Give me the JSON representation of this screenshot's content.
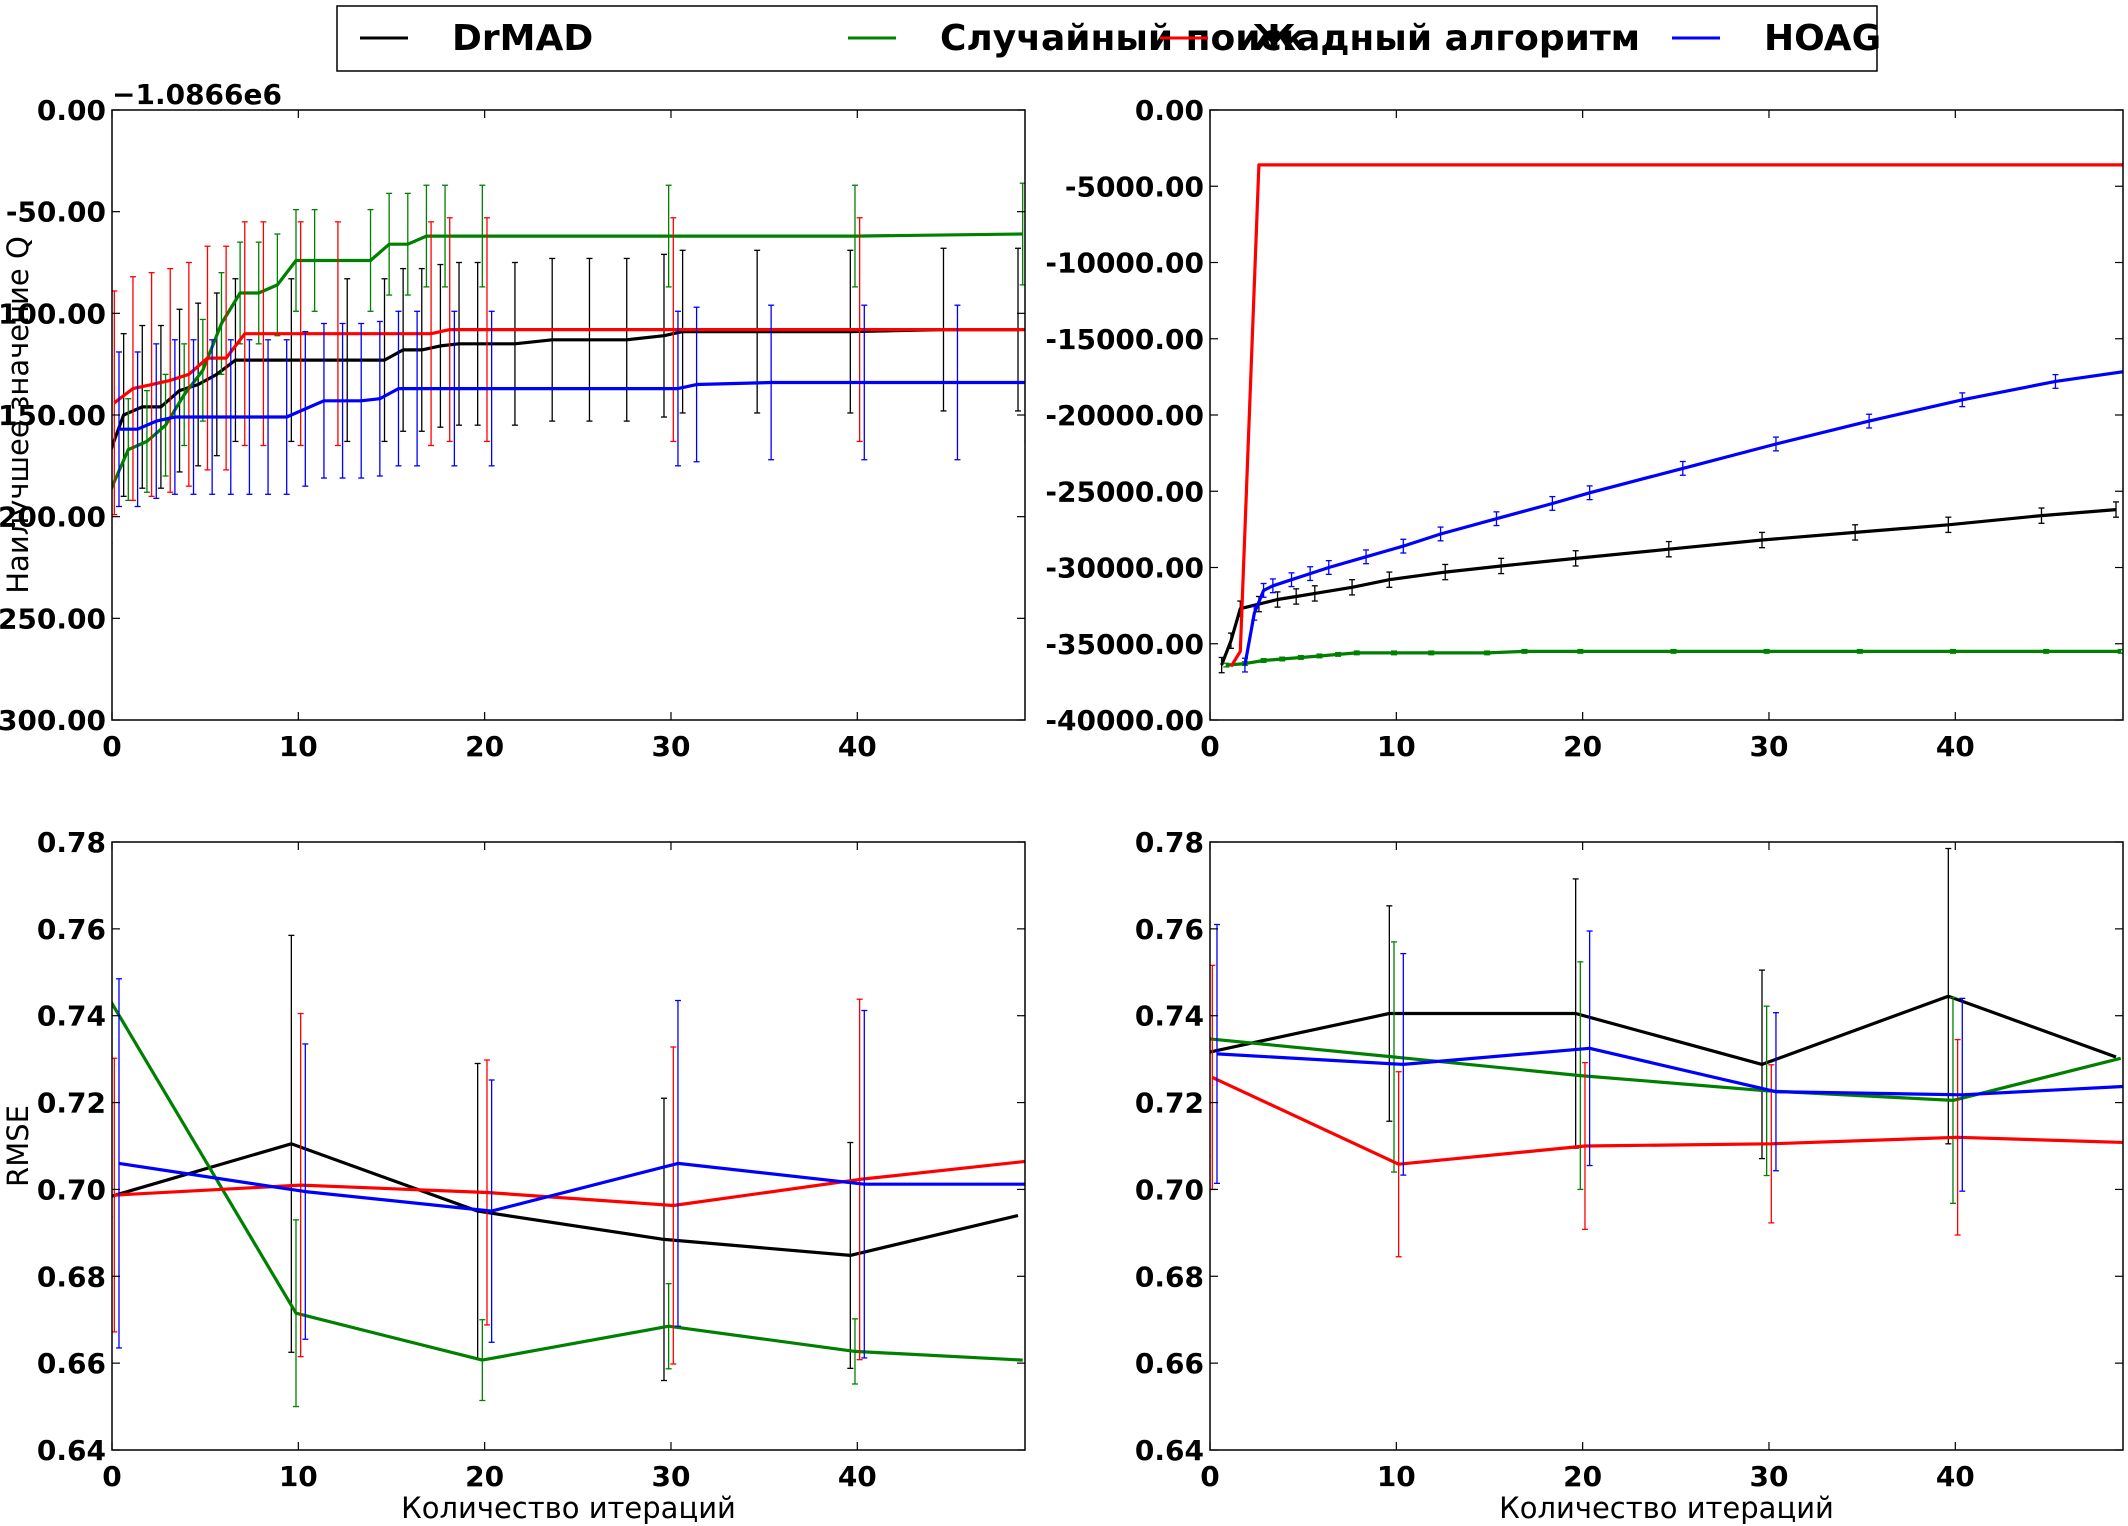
{
  "legend": {
    "entries": [
      {
        "name": "DrMAD",
        "color": "#000000"
      },
      {
        "name": "Случайный поиск",
        "color": "#008000"
      },
      {
        "name": "Жадный алгоритм",
        "color": "#ff0000"
      },
      {
        "name": "HOAG",
        "color": "#0000ff"
      }
    ]
  },
  "chart_data": [
    {
      "id": "top-left",
      "type": "line",
      "ylabel": "Наилучшее значение Q",
      "xlabel": "",
      "offset_text": "−1.0866e6",
      "xlim": [
        0,
        49
      ],
      "ylim": [
        -300,
        0
      ],
      "xticks": [
        0,
        10,
        20,
        30,
        40
      ],
      "yticks": [
        0,
        -50,
        -100,
        -150,
        -200,
        -250,
        -300
      ],
      "series": [
        {
          "name": "DrMAD",
          "color": "#000000",
          "x": [
            0,
            1,
            2,
            3,
            4,
            5,
            6,
            7,
            10,
            13,
            15,
            16,
            17,
            18,
            19,
            20,
            22,
            24,
            26,
            28,
            30,
            31,
            35,
            40,
            45,
            49
          ],
          "y": [
            -175,
            -150,
            -146,
            -146,
            -138,
            -135,
            -130,
            -123,
            -123,
            -123,
            -123,
            -118,
            -118,
            -116,
            -115,
            -115,
            -115,
            -113,
            -113,
            -113,
            -111,
            -109,
            -109,
            -109,
            -108,
            -108
          ],
          "err": 40
        },
        {
          "name": "Случайный поиск",
          "color": "#008000",
          "x": [
            0,
            1,
            2,
            3,
            4,
            5,
            6,
            7,
            8,
            9,
            10,
            11,
            14,
            15,
            16,
            17,
            18,
            20,
            30,
            40,
            49
          ],
          "y": [
            -188,
            -167,
            -163,
            -155,
            -140,
            -128,
            -105,
            -90,
            -90,
            -86,
            -74,
            -74,
            -74,
            -66,
            -66,
            -62,
            -62,
            -62,
            -62,
            -62,
            -61
          ],
          "err": 25
        },
        {
          "name": "Жадный алгоритм",
          "color": "#ff0000",
          "x": [
            0,
            1,
            2,
            3,
            4,
            5,
            6,
            7,
            8,
            10,
            12,
            17,
            18,
            20,
            30,
            40,
            49
          ],
          "y": [
            -144,
            -137,
            -135,
            -133,
            -130,
            -122,
            -122,
            -110,
            -110,
            -110,
            -110,
            -110,
            -108,
            -108,
            -108,
            -108,
            -108
          ],
          "err": 55
        },
        {
          "name": "HOAG",
          "color": "#0000ff",
          "x": [
            0,
            1,
            2,
            3,
            4,
            5,
            6,
            7,
            8,
            9,
            10,
            11,
            12,
            13,
            14,
            15,
            16,
            18,
            20,
            30,
            31,
            35,
            40,
            45,
            49
          ],
          "y": [
            -157,
            -157,
            -153,
            -151,
            -151,
            -151,
            -151,
            -151,
            -151,
            -151,
            -147,
            -143,
            -143,
            -143,
            -142,
            -137,
            -137,
            -137,
            -137,
            -137,
            -135,
            -134,
            -134,
            -134,
            -134
          ],
          "err": 38
        }
      ]
    },
    {
      "id": "top-right",
      "type": "line",
      "ylabel": "",
      "xlabel": "",
      "xlim": [
        0,
        49
      ],
      "ylim": [
        -40000,
        0
      ],
      "xticks": [
        0,
        10,
        20,
        30,
        40
      ],
      "yticks": [
        0,
        -5000,
        -10000,
        -15000,
        -20000,
        -25000,
        -30000,
        -35000,
        -40000
      ],
      "series": [
        {
          "name": "DrMAD",
          "color": "#000000",
          "x": [
            1,
            1.5,
            2,
            3,
            4,
            5,
            6,
            8,
            10,
            13,
            16,
            20,
            25,
            30,
            35,
            40,
            45,
            49
          ],
          "y": [
            -36400,
            -34800,
            -32700,
            -32400,
            -32100,
            -31900,
            -31700,
            -31300,
            -30800,
            -30300,
            -29900,
            -29400,
            -28800,
            -28200,
            -27700,
            -27200,
            -26600,
            -26200
          ],
          "err": 500
        },
        {
          "name": "Случайный поиск",
          "color": "#008000",
          "x": [
            1,
            2,
            3,
            4,
            5,
            6,
            7,
            8,
            10,
            12,
            15,
            17,
            20,
            25,
            30,
            35,
            40,
            45,
            49
          ],
          "y": [
            -36400,
            -36300,
            -36100,
            -36000,
            -35900,
            -35800,
            -35700,
            -35600,
            -35600,
            -35600,
            -35600,
            -35500,
            -35500,
            -35500,
            -35500,
            -35500,
            -35500,
            -35500,
            -35500
          ],
          "err": 120
        },
        {
          "name": "Жадный алгоритм",
          "color": "#ff0000",
          "x": [
            1,
            1.5,
            2.5,
            5,
            10,
            20,
            30,
            40,
            49
          ],
          "y": [
            -36500,
            -35500,
            -3600,
            -3600,
            -3600,
            -3600,
            -3600,
            -3600,
            -3600
          ],
          "err": 0
        },
        {
          "name": "HOAG",
          "color": "#0000ff",
          "x": [
            1.5,
            2,
            2.5,
            3,
            4,
            5,
            6,
            8,
            10,
            12,
            15,
            18,
            20,
            25,
            30,
            35,
            40,
            45,
            49
          ],
          "y": [
            -36400,
            -33000,
            -31500,
            -31200,
            -30800,
            -30400,
            -30000,
            -29300,
            -28600,
            -27800,
            -26800,
            -25800,
            -25100,
            -23500,
            -21900,
            -20400,
            -19000,
            -17800,
            -17100
          ],
          "err": 450
        }
      ]
    },
    {
      "id": "bottom-left",
      "type": "line",
      "ylabel": "RMSE",
      "xlabel": "Количество итераций",
      "xlim": [
        0,
        49
      ],
      "ylim": [
        0.64,
        0.78
      ],
      "xticks": [
        0,
        10,
        20,
        30,
        40
      ],
      "yticks": [
        0.78,
        0.76,
        0.74,
        0.72,
        0.7,
        0.68,
        0.66,
        0.64
      ],
      "series": [
        {
          "name": "DrMAD",
          "color": "#000000",
          "x": [
            0,
            10,
            20,
            30,
            40,
            49
          ],
          "y": [
            0.698,
            0.7105,
            0.695,
            0.6885,
            0.6848,
            0.694
          ],
          "err": [
            0.033,
            0.048,
            0.034,
            0.0325,
            0.026,
            0
          ]
        },
        {
          "name": "Случайный поиск",
          "color": "#008000",
          "x": [
            0,
            10,
            20,
            30,
            40,
            49
          ],
          "y": [
            0.7437,
            0.6715,
            0.6607,
            0.6685,
            0.6627,
            0.6607
          ],
          "err": [
            0.05,
            0.0215,
            0.0093,
            0.0098,
            0.0075,
            0
          ]
        },
        {
          "name": "Жадный алгоритм",
          "color": "#ff0000",
          "x": [
            0,
            10,
            20,
            30,
            40,
            49
          ],
          "y": [
            0.6987,
            0.701,
            0.6993,
            0.6963,
            0.7023,
            0.7065
          ],
          "err": [
            0.0315,
            0.0395,
            0.0305,
            0.0365,
            0.0415,
            0
          ]
        },
        {
          "name": "HOAG",
          "color": "#0000ff",
          "x": [
            0,
            10,
            20,
            30,
            40,
            49
          ],
          "y": [
            0.706,
            0.6995,
            0.695,
            0.706,
            0.7012,
            0.7012
          ],
          "err": [
            0.0425,
            0.034,
            0.0302,
            0.0375,
            0.04,
            0
          ]
        }
      ]
    },
    {
      "id": "bottom-right",
      "type": "line",
      "ylabel": "",
      "xlabel": "Количество итераций",
      "xlim": [
        0,
        49
      ],
      "ylim": [
        0.64,
        0.78
      ],
      "xticks": [
        0,
        10,
        20,
        30,
        40
      ],
      "yticks": [
        0.78,
        0.76,
        0.74,
        0.72,
        0.7,
        0.68,
        0.66,
        0.64
      ],
      "series": [
        {
          "name": "DrMAD",
          "color": "#000000",
          "x": [
            0,
            10,
            20,
            30,
            40,
            49
          ],
          "y": [
            0.7313,
            0.7405,
            0.7405,
            0.7288,
            0.7445,
            0.7305
          ],
          "err": [
            0.0275,
            0.0248,
            0.031,
            0.0217,
            0.034,
            0
          ]
        },
        {
          "name": "Случайный поиск",
          "color": "#008000",
          "x": [
            0,
            10,
            20,
            30,
            40,
            49
          ],
          "y": [
            0.7347,
            0.7305,
            0.7262,
            0.7227,
            0.7205,
            0.7302
          ],
          "err": [
            0.027,
            0.0265,
            0.0262,
            0.0195,
            0.0237,
            0
          ]
        },
        {
          "name": "Жадный алгоритм",
          "color": "#ff0000",
          "x": [
            0,
            10,
            20,
            30,
            40,
            49
          ],
          "y": [
            0.7258,
            0.7058,
            0.71,
            0.7105,
            0.712,
            0.7108
          ],
          "err": [
            0.0258,
            0.0213,
            0.0192,
            0.0182,
            0.0225,
            0
          ]
        },
        {
          "name": "HOAG",
          "color": "#0000ff",
          "x": [
            0,
            10,
            20,
            30,
            40,
            49
          ],
          "y": [
            0.7312,
            0.7288,
            0.7325,
            0.7225,
            0.7218,
            0.7238
          ],
          "err": [
            0.0298,
            0.0255,
            0.027,
            0.0182,
            0.0222,
            0
          ]
        }
      ]
    }
  ]
}
